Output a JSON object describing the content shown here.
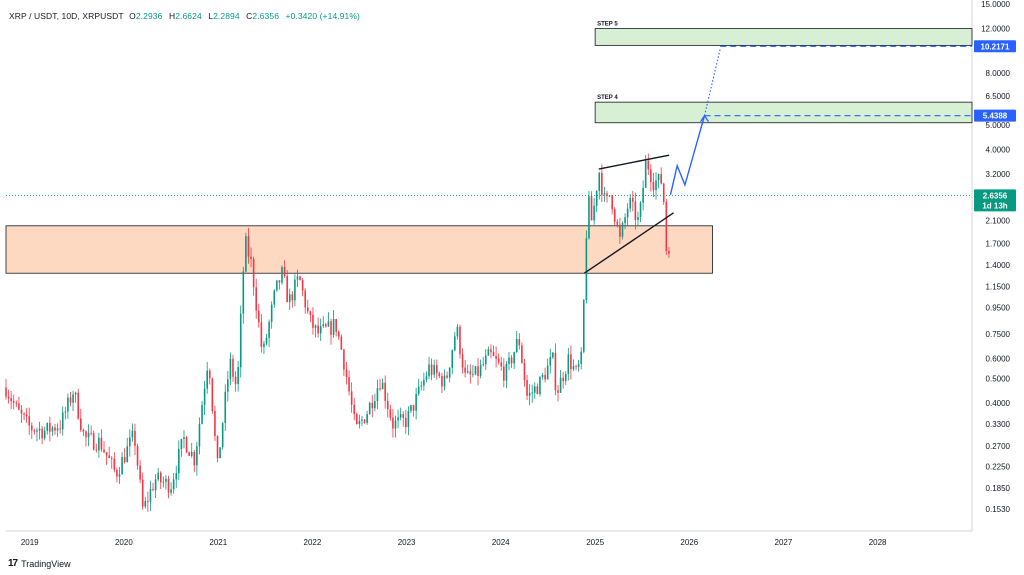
{
  "header": {
    "symbol": "XRP / USDT, 10D, XRPUSDT",
    "o_label": "O",
    "o_value": "2.2936",
    "h_label": "H",
    "h_value": "2.6624",
    "l_label": "L",
    "l_value": "2.2894",
    "c_label": "C",
    "c_value": "2.6356",
    "change": "+0.3420 (+14.91%)"
  },
  "branding": {
    "logo": "17",
    "name": "TradingView",
    "logo_icon": "tradingview-logo-icon"
  },
  "colors": {
    "up": "#089981",
    "down": "#f23645",
    "zone_orange": "#fcd9c0",
    "zone_green": "#d7efd2",
    "projection": "#2962ff",
    "price_line": "#089981"
  },
  "chart_data": {
    "type": "candlestick",
    "symbol": "XRPUSDT",
    "interval": "10D",
    "y_scale": "log",
    "ylim": [
      0.125,
      15.0
    ],
    "xlim": [
      "2018-10-01",
      "2029-01-01"
    ],
    "y_ticks": [
      "15.0000",
      "12.0000",
      "10.0000",
      "8.0000",
      "6.5000",
      "5.0000",
      "4.0000",
      "3.2000",
      "2.6000",
      "2.1000",
      "1.7000",
      "1.4000",
      "1.1500",
      "0.9500",
      "0.7500",
      "0.6000",
      "0.5000",
      "0.4000",
      "0.3300",
      "0.2700",
      "0.2250",
      "0.1850",
      "0.1530"
    ],
    "y_tick_values": [
      15,
      12,
      10,
      8,
      6.5,
      5,
      4,
      3.2,
      2.6,
      2.1,
      1.7,
      1.4,
      1.15,
      0.95,
      0.75,
      0.6,
      0.5,
      0.4,
      0.33,
      0.27,
      0.225,
      0.185,
      0.153
    ],
    "x_ticks": [
      "2019",
      "2020",
      "2021",
      "2022",
      "2023",
      "2024",
      "2025",
      "2026",
      "2027",
      "2028"
    ],
    "last_price": {
      "value": 2.6356,
      "label": "2.6356",
      "countdown": "1d 13h"
    },
    "levels": [
      {
        "name": "STEP 4",
        "label": "STEP 4",
        "low": 5.1,
        "high": 6.15,
        "x_start": "2025-01-01",
        "x_end": "2029-01-01",
        "target": 5.4388,
        "target_label": "5.4388"
      },
      {
        "name": "STEP 5",
        "label": "STEP 5",
        "low": 10.3,
        "high": 12.0,
        "x_start": "2025-01-01",
        "x_end": "2029-01-01",
        "target": 10.2171,
        "target_label": "10.2171"
      }
    ],
    "support_zone": {
      "low": 1.3,
      "high": 2.0,
      "x_start": "2018-10-01",
      "x_end": "2026-04-01"
    },
    "trendlines": [
      {
        "name": "triangle-upper",
        "points": [
          [
            "2025-01-15",
            3.35
          ],
          [
            "2025-10-15",
            3.8
          ]
        ]
      },
      {
        "name": "triangle-lower",
        "points": [
          [
            "2024-11-20",
            1.3
          ],
          [
            "2025-11-01",
            2.25
          ]
        ]
      }
    ],
    "projection": {
      "points": [
        [
          "2025-10-20",
          2.65
        ],
        [
          "2025-11-15",
          3.45
        ],
        [
          "2025-12-15",
          2.9
        ],
        [
          "2026-03-01",
          5.4388
        ]
      ]
    },
    "projection_dotted": {
      "points": [
        [
          "2026-03-01",
          5.4388
        ],
        [
          "2026-05-01",
          10.0
        ]
      ]
    },
    "key_points": [
      [
        "2018-10-01",
        0.46
      ],
      [
        "2018-11-15",
        0.37
      ],
      [
        "2019-01-01",
        0.32
      ],
      [
        "2019-03-01",
        0.31
      ],
      [
        "2019-05-01",
        0.33
      ],
      [
        "2019-06-20",
        0.45
      ],
      [
        "2019-08-01",
        0.29
      ],
      [
        "2019-10-01",
        0.28
      ],
      [
        "2019-12-01",
        0.21
      ],
      [
        "2020-02-10",
        0.3
      ],
      [
        "2020-03-15",
        0.15
      ],
      [
        "2020-05-01",
        0.2
      ],
      [
        "2020-07-01",
        0.19
      ],
      [
        "2020-08-20",
        0.29
      ],
      [
        "2020-10-01",
        0.24
      ],
      [
        "2020-11-24",
        0.62
      ],
      [
        "2020-12-28",
        0.22
      ],
      [
        "2021-02-01",
        0.45
      ],
      [
        "2021-02-15",
        0.58
      ],
      [
        "2021-03-15",
        0.45
      ],
      [
        "2021-04-14",
        1.75
      ],
      [
        "2021-05-10",
        1.4
      ],
      [
        "2021-06-22",
        0.61
      ],
      [
        "2021-08-10",
        1.1
      ],
      [
        "2021-09-06",
        1.3
      ],
      [
        "2021-10-01",
        1.0
      ],
      [
        "2021-11-10",
        1.25
      ],
      [
        "2021-12-20",
        0.85
      ],
      [
        "2022-01-20",
        0.75
      ],
      [
        "2022-03-01",
        0.78
      ],
      [
        "2022-04-01",
        0.82
      ],
      [
        "2022-05-01",
        0.6
      ],
      [
        "2022-06-18",
        0.31
      ],
      [
        "2022-08-01",
        0.37
      ],
      [
        "2022-09-23",
        0.5
      ],
      [
        "2022-11-09",
        0.33
      ],
      [
        "2022-12-31",
        0.34
      ],
      [
        "2023-02-01",
        0.4
      ],
      [
        "2023-03-29",
        0.55
      ],
      [
        "2023-06-01",
        0.48
      ],
      [
        "2023-07-13",
        0.8
      ],
      [
        "2023-08-17",
        0.5
      ],
      [
        "2023-10-01",
        0.52
      ],
      [
        "2023-11-20",
        0.62
      ],
      [
        "2024-01-20",
        0.52
      ],
      [
        "2024-03-11",
        0.72
      ],
      [
        "2024-04-13",
        0.42
      ],
      [
        "2024-06-01",
        0.48
      ],
      [
        "2024-07-20",
        0.6
      ],
      [
        "2024-08-05",
        0.44
      ],
      [
        "2024-09-20",
        0.6
      ],
      [
        "2024-10-20",
        0.52
      ],
      [
        "2024-11-10",
        0.6
      ],
      [
        "2024-11-24",
        1.45
      ],
      [
        "2024-12-03",
        2.6
      ],
      [
        "2024-12-20",
        2.05
      ],
      [
        "2025-01-15",
        3.35
      ],
      [
        "2025-02-10",
        2.4
      ],
      [
        "2025-03-01",
        2.7
      ],
      [
        "2025-04-07",
        1.75
      ],
      [
        "2025-05-12",
        2.5
      ],
      [
        "2025-06-20",
        2.05
      ],
      [
        "2025-07-18",
        3.65
      ],
      [
        "2025-08-15",
        3.0
      ],
      [
        "2025-09-20",
        3.0
      ],
      [
        "2025-10-10",
        1.25
      ],
      [
        "2025-10-20",
        2.6356
      ]
    ]
  }
}
